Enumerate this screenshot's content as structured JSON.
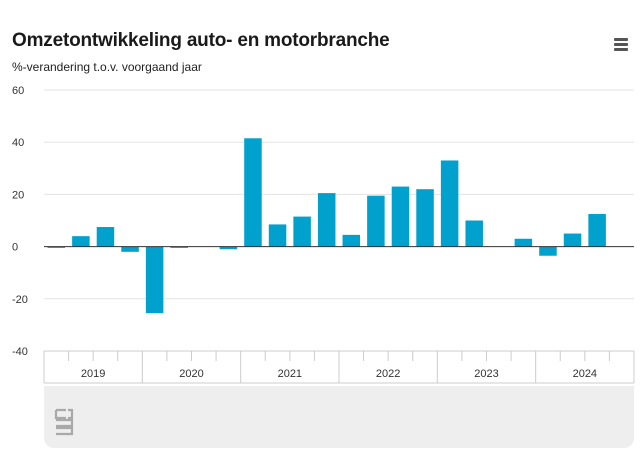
{
  "header": {
    "title": "Omzetontwikkeling auto- en motorbranche",
    "subtitle": "%-verandering t.o.v. voorgaand jaar",
    "menu_icon": "hamburger-menu-icon"
  },
  "footer": {
    "logo_icon": "cbs-logo-icon"
  },
  "colors": {
    "bar": "#00a1cd",
    "grid": "#e3e3e3",
    "zero_line": "#333333",
    "axis": "#cccccc"
  },
  "chart_data": {
    "type": "bar",
    "title": "Omzetontwikkeling auto- en motorbranche",
    "subtitle": "%-verandering t.o.v. voorgaand jaar",
    "xlabel": "",
    "ylabel": "",
    "ylim": [
      -40,
      60
    ],
    "yticks": [
      "60",
      "40",
      "20",
      "0",
      "-20",
      "-40"
    ],
    "years": [
      "2019",
      "2020",
      "2021",
      "2022",
      "2023",
      "2024"
    ],
    "quarters_per_year": 4,
    "values": [
      -0.5,
      4,
      7.5,
      -2,
      -25.5,
      -0.5,
      null,
      -1,
      41.5,
      8.5,
      11.5,
      20.5,
      4.5,
      19.5,
      23,
      22,
      33,
      10,
      null,
      3,
      -3.5,
      5,
      12.5,
      null
    ],
    "grid": true,
    "legend": "none"
  }
}
